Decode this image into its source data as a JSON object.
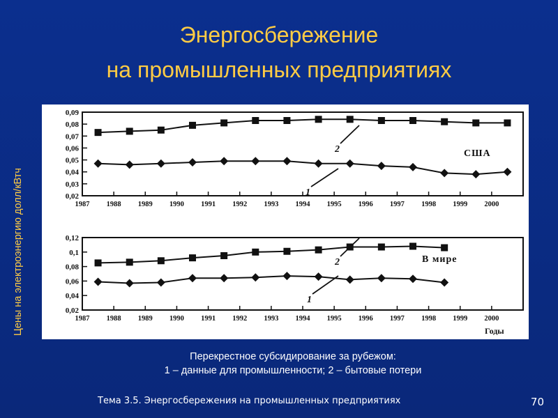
{
  "title_line1": "Энергосбережение",
  "title_line2": "на промышленных предприятиях",
  "y_axis_label": "Цены  на электроэнергию долл/кВтч",
  "caption_line1": "Перекрестное субсидирование за рубежом:",
  "caption_line2": "1 – данные для промышленности; 2 – бытовые потери",
  "footer_text": "Тема 3.5. Энергосбережения на промышленных предприятиях",
  "page_number": "70",
  "chart_data": [
    {
      "type": "line",
      "title": "США",
      "ylim": [
        0.02,
        0.09
      ],
      "yticks": [
        0.02,
        0.03,
        0.04,
        0.05,
        0.06,
        0.07,
        0.08,
        0.09
      ],
      "ytick_labels": [
        "0,02",
        "0,03",
        "0,04",
        "0,05",
        "0,06",
        "0,07",
        "0,08",
        "0,09"
      ],
      "xlim": [
        1987,
        2001
      ],
      "xticks": [
        1987,
        1988,
        1989,
        1990,
        1991,
        1992,
        1993,
        1994,
        1995,
        1996,
        1997,
        1998,
        1999,
        2000
      ],
      "xtick_labels": [
        "1987",
        "1988",
        "1989",
        "1990",
        "1991",
        "1992",
        "1993",
        "1994",
        "1995",
        "1996",
        "1997",
        "1998",
        "1999",
        "2000"
      ],
      "xlabel": "",
      "series": [
        {
          "name": "2",
          "marker": "square",
          "x": [
            1987.5,
            1988.5,
            1989.5,
            1990.5,
            1991.5,
            1992.5,
            1993.5,
            1994.5,
            1995.5,
            1996.5,
            1997.5,
            1998.5,
            1999.5,
            2000.5
          ],
          "y": [
            0.073,
            0.074,
            0.075,
            0.079,
            0.081,
            0.083,
            0.083,
            0.084,
            0.084,
            0.083,
            0.083,
            0.082,
            0.081,
            0.081
          ]
        },
        {
          "name": "1",
          "marker": "diamond",
          "x": [
            1987.5,
            1988.5,
            1989.5,
            1990.5,
            1991.5,
            1992.5,
            1993.5,
            1994.5,
            1995.5,
            1996.5,
            1997.5,
            1998.5,
            1999.5,
            2000.5
          ],
          "y": [
            0.047,
            0.046,
            0.047,
            0.048,
            0.049,
            0.049,
            0.049,
            0.047,
            0.047,
            0.045,
            0.044,
            0.039,
            0.038,
            0.04
          ]
        }
      ]
    },
    {
      "type": "line",
      "title": "В мире",
      "ylim": [
        0.02,
        0.12
      ],
      "yticks": [
        0.02,
        0.04,
        0.06,
        0.08,
        0.1,
        0.12
      ],
      "ytick_labels": [
        "0,02",
        "0,04",
        "0,06",
        "0,08",
        "0,1",
        "0,12"
      ],
      "xlim": [
        1987,
        2001
      ],
      "xticks": [
        1987,
        1988,
        1989,
        1990,
        1991,
        1992,
        1993,
        1994,
        1995,
        1996,
        1997,
        1998,
        1999,
        2000
      ],
      "xtick_labels": [
        "1987",
        "1988",
        "1989",
        "1990",
        "1991",
        "1992",
        "1993",
        "1994",
        "1995",
        "1996",
        "1997",
        "1998",
        "1999",
        "2000"
      ],
      "xlabel": "Годы",
      "series": [
        {
          "name": "2",
          "marker": "square",
          "x": [
            1987.5,
            1988.5,
            1989.5,
            1990.5,
            1991.5,
            1992.5,
            1993.5,
            1994.5,
            1995.5,
            1996.5,
            1997.5,
            1998.5
          ],
          "y": [
            0.085,
            0.086,
            0.088,
            0.092,
            0.095,
            0.1,
            0.101,
            0.103,
            0.107,
            0.107,
            0.108,
            0.106
          ]
        },
        {
          "name": "1",
          "marker": "diamond",
          "x": [
            1987.5,
            1988.5,
            1989.5,
            1990.5,
            1991.5,
            1992.5,
            1993.5,
            1994.5,
            1995.5,
            1996.5,
            1997.5,
            1998.5
          ],
          "y": [
            0.059,
            0.057,
            0.058,
            0.064,
            0.064,
            0.065,
            0.067,
            0.066,
            0.062,
            0.064,
            0.063,
            0.058
          ]
        }
      ]
    }
  ]
}
